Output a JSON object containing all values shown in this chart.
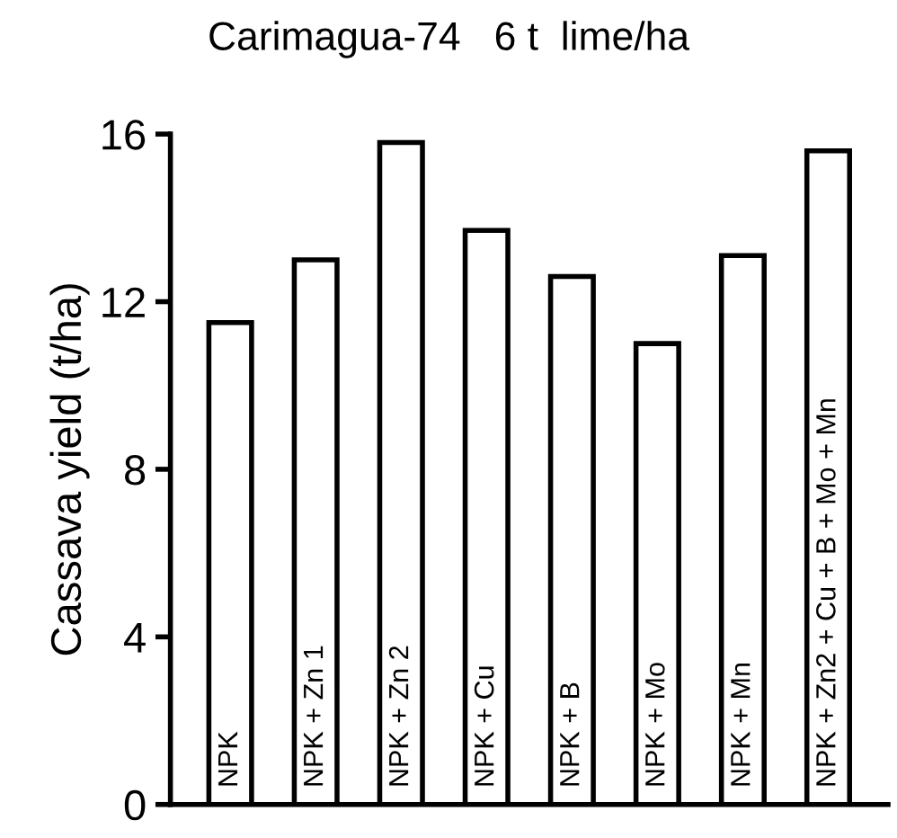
{
  "chart_data": {
    "type": "bar",
    "title": "Carimagua-74   6 t  lime/ha",
    "ylabel": "Cassava yield (t/ha)",
    "categories": [
      "NPK",
      "NPK + Zn 1",
      "NPK + Zn 2",
      "NPK + Cu",
      "NPK + B",
      "NPK + Mo",
      "NPK + Mn",
      "NPK + Zn2 + Cu + B + Mo + Mn"
    ],
    "values": [
      11.5,
      13.0,
      15.8,
      13.7,
      12.6,
      11.0,
      13.1,
      15.6
    ],
    "color": "#ffffff",
    "ylim": [
      0,
      16
    ],
    "yticks": [
      0,
      4,
      8,
      12,
      16
    ],
    "grid": false
  }
}
